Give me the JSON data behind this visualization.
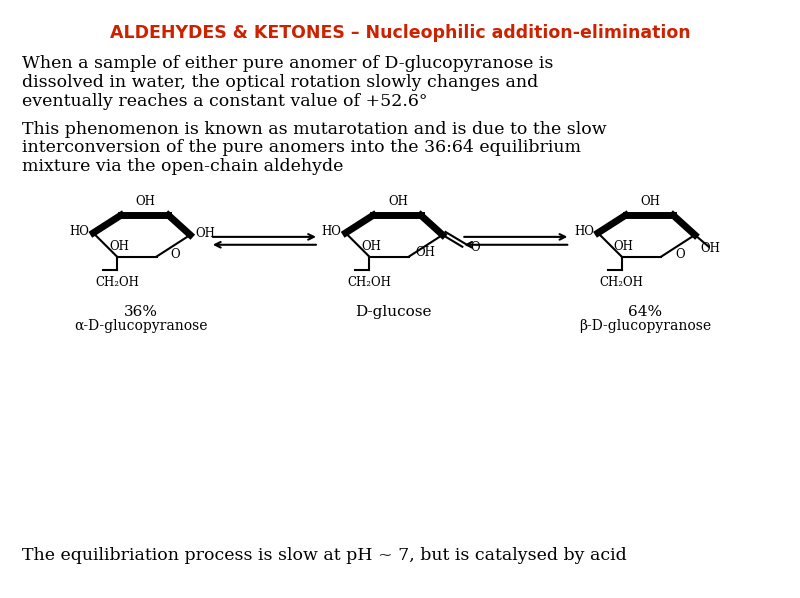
{
  "title": "ALDEHYDES & KETONES – Nucleophilic addition-elimination",
  "title_color": "#CC2200",
  "background_color": "#FFFFFF",
  "para1_line1": "When a sample of either pure anomer of D-glucopyranose is",
  "para1_line2": "dissolved in water, the optical rotation slowly changes and",
  "para1_line3": "eventually reaches a constant value of +52.6°",
  "para2_line1": "This phenomenon is known as mutarotation and is due to the slow",
  "para2_line2": "interconversion of the pure anomers into the 36:64 equilibrium",
  "para2_line3": "mixture via the open-chain aldehyde",
  "label_left_pct": "36%",
  "label_left_name": "α-D-glucopyranose",
  "label_center_name": "D-glucose",
  "label_right_pct": "64%",
  "label_right_name": "β-D-glucopyranose",
  "footer": "The equilibriation process is slow at pH ~ 7, but is catalysed by acid",
  "text_color": "#000000",
  "fs_title": 12.5,
  "fs_body": 12.5,
  "fs_struct": 8.5,
  "fs_label": 11
}
